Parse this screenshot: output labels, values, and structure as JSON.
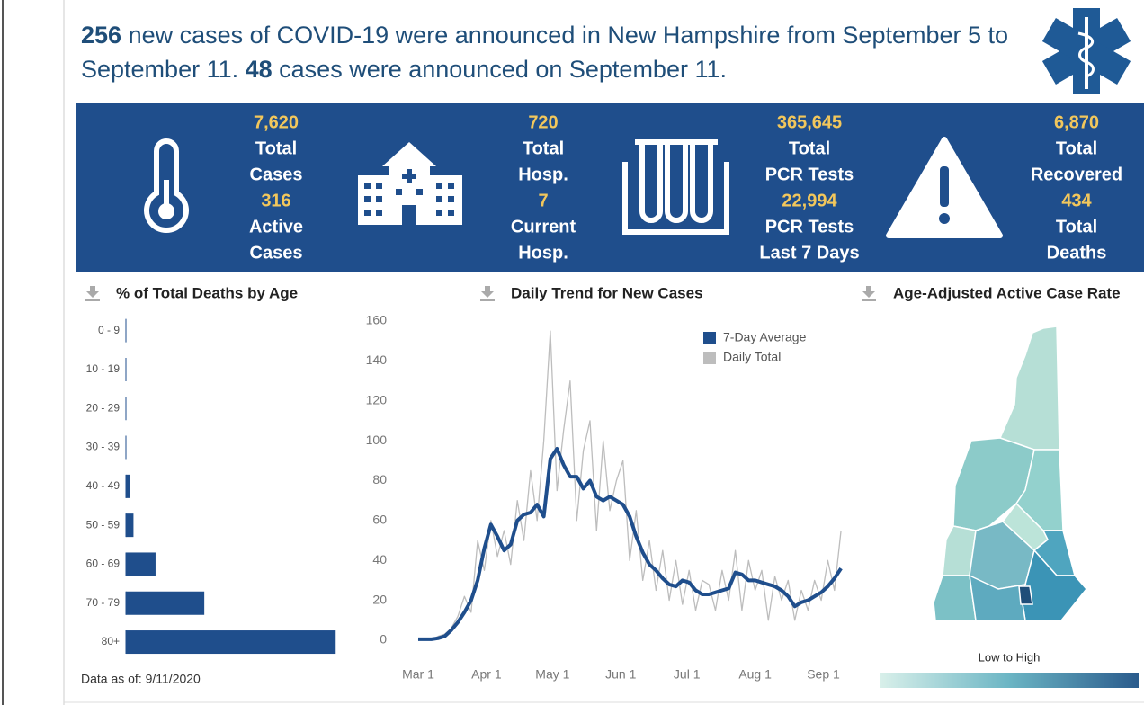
{
  "headline": [
    {
      "text": "256",
      "bold": true
    },
    {
      "text": " new cases of COVID-19 were announced in New Hampshire from September 5 to September 11. ",
      "bold": false
    },
    {
      "text": "48",
      "bold": true
    },
    {
      "text": " cases were announced on September 11.",
      "bold": false
    }
  ],
  "stats": [
    {
      "value1": "7,620",
      "label1": [
        "Total",
        "Cases"
      ],
      "value2": "316",
      "label2": [
        "Active",
        "Cases"
      ]
    },
    {
      "value1": "720",
      "label1": [
        "Total",
        "Hosp."
      ],
      "value2": "7",
      "label2": [
        "Current",
        "Hosp."
      ]
    },
    {
      "value1": "365,645",
      "label1": [
        "Total",
        "PCR Tests"
      ],
      "value2": "22,994",
      "label2": [
        "PCR Tests",
        "Last 7 Days"
      ]
    },
    {
      "value1": "6,870",
      "label1": [
        "Total",
        "Recovered"
      ],
      "value2": "434",
      "label2": [
        "Total",
        "Deaths"
      ]
    }
  ],
  "chart_data": [
    {
      "type": "bar",
      "title": "% of Total Deaths by Age",
      "categories": [
        "0 - 9",
        "10 - 19",
        "20 - 29",
        "30 - 39",
        "40 - 49",
        "50 - 59",
        "60 - 69",
        "70 - 79",
        "80+"
      ],
      "values": [
        0,
        0,
        0,
        0,
        1.2,
        2.3,
        9.0,
        23.8,
        63.7
      ],
      "color": "#1f4e8c",
      "xlim": [
        0,
        65
      ],
      "footnote": "Data as of: 9/11/2020"
    },
    {
      "type": "line",
      "title": "Daily Trend for New Cases",
      "x": [
        0,
        3,
        6,
        9,
        12,
        15,
        18,
        21,
        24,
        27,
        30,
        33,
        36,
        39,
        42,
        45,
        48,
        51,
        54,
        57,
        60,
        63,
        66,
        69,
        72,
        75,
        78,
        81,
        84,
        87,
        90,
        93,
        96,
        99,
        102,
        105,
        108,
        111,
        114,
        117,
        120,
        123,
        126,
        129,
        132,
        135,
        138,
        141,
        144,
        147,
        150,
        153,
        156,
        159,
        162,
        165,
        168,
        171,
        174,
        177,
        180,
        183,
        186,
        189,
        192
      ],
      "xlim": [
        0,
        194
      ],
      "xticks": [
        {
          "value": 0,
          "label": "Mar 1"
        },
        {
          "value": 31,
          "label": "Apr 1"
        },
        {
          "value": 61,
          "label": "May 1"
        },
        {
          "value": 92,
          "label": "Jun 1"
        },
        {
          "value": 122,
          "label": "Jul 1"
        },
        {
          "value": 153,
          "label": "Aug 1"
        },
        {
          "value": 184,
          "label": "Sep 1"
        }
      ],
      "ylim": [
        0,
        160
      ],
      "yticks": [
        0,
        20,
        40,
        60,
        80,
        100,
        120,
        140,
        160
      ],
      "series": [
        {
          "name": "7-Day Average",
          "color": "#1f4e8c",
          "values": [
            0.5,
            0.5,
            0.5,
            1,
            2,
            5,
            9,
            14,
            20,
            30,
            46,
            58,
            52,
            45,
            48,
            60,
            63,
            64,
            68,
            62,
            91,
            96,
            88,
            82,
            82,
            76,
            80,
            72,
            70,
            72,
            70,
            68,
            62,
            52,
            44,
            38,
            35,
            31,
            28,
            27,
            30,
            29,
            25,
            23,
            23,
            24,
            25,
            26,
            34,
            33,
            30,
            30,
            29,
            28,
            27,
            25,
            22,
            17,
            19,
            20,
            22,
            24,
            27,
            31,
            36
          ]
        },
        {
          "name": "Daily Total",
          "color": "#bdbdbd",
          "values": [
            0,
            1,
            0,
            2,
            3,
            6,
            12,
            22,
            14,
            50,
            35,
            60,
            42,
            55,
            38,
            70,
            50,
            85,
            60,
            100,
            155,
            75,
            105,
            130,
            60,
            95,
            110,
            55,
            100,
            65,
            80,
            90,
            40,
            65,
            30,
            50,
            25,
            45,
            20,
            40,
            18,
            35,
            15,
            30,
            28,
            15,
            35,
            20,
            45,
            15,
            40,
            25,
            35,
            10,
            32,
            20,
            30,
            10,
            25,
            15,
            30,
            20,
            40,
            25,
            55
          ]
        }
      ]
    }
  ],
  "map": {
    "title": "Age-Adjusted Active Case Rate",
    "legend_label": "Low to High"
  }
}
